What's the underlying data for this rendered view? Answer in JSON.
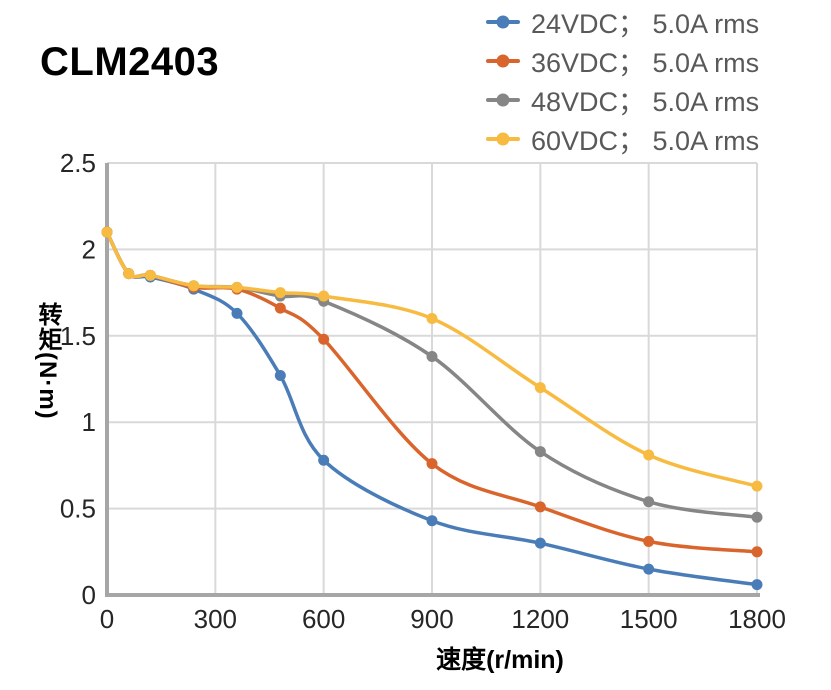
{
  "title": "CLM2403",
  "chart_data": {
    "type": "line",
    "title": "CLM2403",
    "xlabel": "速度(r/min)",
    "ylabel": "转矩(N·m)",
    "xlim": [
      0,
      1800
    ],
    "ylim": [
      0,
      2.5
    ],
    "x_ticks": [
      "0",
      "300",
      "600",
      "900",
      "1200",
      "1500",
      "1800"
    ],
    "x_tick_values": [
      0,
      300,
      600,
      900,
      1200,
      1500,
      1800
    ],
    "y_ticks": [
      "0",
      "0.5",
      "1",
      "1.5",
      "2",
      "2.5"
    ],
    "y_tick_values": [
      0,
      0.5,
      1,
      1.5,
      2,
      2.5
    ],
    "grid": true,
    "legend_position": "top-right",
    "x": [
      0,
      60,
      120,
      240,
      360,
      480,
      600,
      900,
      1200,
      1500,
      1800
    ],
    "series": [
      {
        "name": "24VDC； 5.0A rms",
        "color": "#4a7db8",
        "values": [
          2.1,
          1.86,
          1.84,
          1.77,
          1.63,
          1.27,
          0.78,
          0.43,
          0.3,
          0.15,
          0.06
        ]
      },
      {
        "name": "36VDC； 5.0A rms",
        "color": "#d9652c",
        "values": [
          2.1,
          1.86,
          1.85,
          1.78,
          1.77,
          1.66,
          1.48,
          0.76,
          0.51,
          0.31,
          0.25
        ]
      },
      {
        "name": "48VDC； 5.0A rms",
        "color": "#868686",
        "values": [
          2.1,
          1.86,
          1.85,
          1.79,
          1.78,
          1.73,
          1.7,
          1.38,
          0.83,
          0.54,
          0.45
        ]
      },
      {
        "name": "60VDC； 5.0A rms",
        "color": "#f8bb41",
        "values": [
          2.1,
          1.86,
          1.85,
          1.79,
          1.78,
          1.75,
          1.73,
          1.6,
          1.2,
          0.81,
          0.63
        ]
      }
    ],
    "colors": {
      "gridline": "#d9d9d9",
      "axis": "#a6a6a6",
      "tick_text": "#262626",
      "legend_text": "#595959"
    }
  }
}
